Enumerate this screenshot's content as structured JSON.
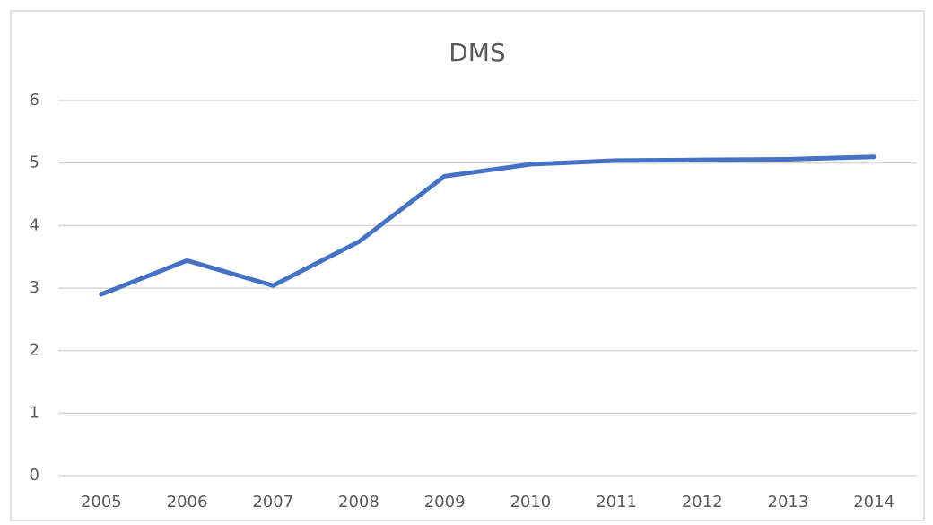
{
  "chart_data": {
    "type": "line",
    "title": "DMS",
    "categories": [
      "2005",
      "2006",
      "2007",
      "2008",
      "2009",
      "2010",
      "2011",
      "2012",
      "2013",
      "2014"
    ],
    "values": [
      2.9,
      3.44,
      3.04,
      3.74,
      4.79,
      4.98,
      5.04,
      5.05,
      5.06,
      5.1
    ],
    "color": "#4472c4",
    "ylim": [
      0,
      6
    ],
    "yticks": [
      0,
      1,
      2,
      3,
      4,
      5,
      6
    ],
    "grid": true
  }
}
